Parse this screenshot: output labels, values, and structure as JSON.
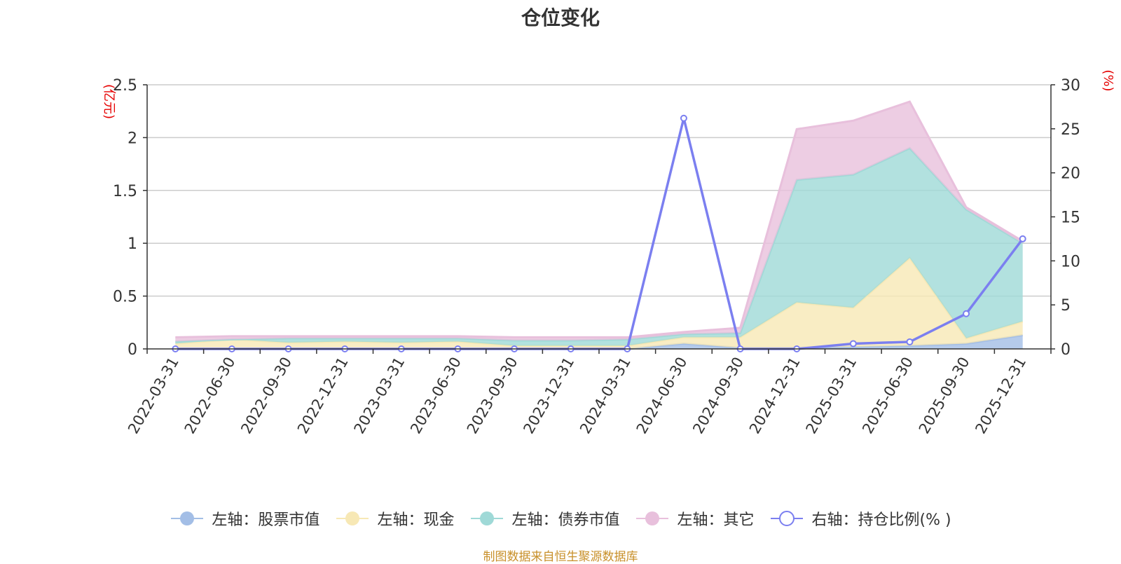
{
  "chart_data": {
    "type": "area",
    "title": "仓位变化",
    "left_unit": "(亿元)",
    "right_unit": "(%)",
    "categories": [
      "2022-03-31",
      "2022-06-30",
      "2022-09-30",
      "2022-12-31",
      "2023-03-31",
      "2023-06-30",
      "2023-09-30",
      "2023-12-31",
      "2024-03-31",
      "2024-06-30",
      "2024-09-30",
      "2024-12-31",
      "2025-03-31",
      "2025-06-30",
      "2025-09-30",
      "2025-12-31"
    ],
    "left_axis": {
      "min": 0,
      "max": 2.5,
      "ticks": [
        0,
        0.5,
        1,
        1.5,
        2,
        2.5
      ]
    },
    "right_axis": {
      "min": 0,
      "max": 30,
      "ticks": [
        0,
        5,
        10,
        15,
        20,
        25,
        30
      ]
    },
    "grid": true,
    "legend_position": "bottom",
    "series": [
      {
        "name": "左轴：股票市值",
        "axis": "left",
        "stack": true,
        "color": "#a3bee6",
        "values": [
          0,
          0,
          0,
          0,
          0,
          0,
          0,
          0,
          0,
          0.05,
          0.01,
          0.01,
          0.02,
          0.03,
          0.05,
          0.13
        ]
      },
      {
        "name": "左轴：现金",
        "axis": "left",
        "stack": true,
        "color": "#f7e8b5",
        "values": [
          0.05,
          0.09,
          0.06,
          0.07,
          0.06,
          0.07,
          0.03,
          0.03,
          0.03,
          0.06,
          0.1,
          0.43,
          0.37,
          0.83,
          0.05,
          0.13
        ]
      },
      {
        "name": "左轴：债券市值",
        "axis": "left",
        "stack": true,
        "color": "#9fd9d7",
        "values": [
          0.02,
          0.0,
          0.04,
          0.03,
          0.04,
          0.03,
          0.05,
          0.05,
          0.06,
          0.03,
          0.04,
          1.16,
          1.26,
          1.04,
          1.22,
          0.74
        ]
      },
      {
        "name": "左轴：其它",
        "axis": "left",
        "stack": true,
        "color": "#e8c0dc",
        "values": [
          0.04,
          0.03,
          0.02,
          0.02,
          0.02,
          0.02,
          0.03,
          0.03,
          0.02,
          0.02,
          0.05,
          0.48,
          0.51,
          0.44,
          0.02,
          0.02
        ]
      },
      {
        "name": "右轴：持仓比例(% )",
        "axis": "right",
        "stack": false,
        "color": "#7b7ff0",
        "values": [
          0,
          0,
          0,
          0,
          0,
          0,
          0,
          0,
          0,
          26.2,
          0,
          0,
          0.6,
          0.8,
          4,
          12.5
        ]
      }
    ],
    "source": "制图数据来自恒生聚源数据库"
  }
}
